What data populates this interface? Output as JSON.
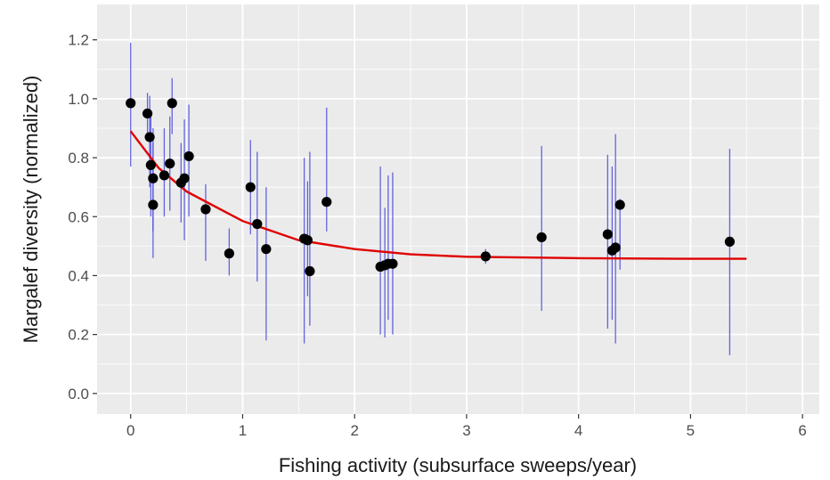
{
  "chart_data": {
    "type": "scatter",
    "xlabel": "Fishing activity (subsurface sweeps/year)",
    "ylabel": "Margalef diversity (normalized)",
    "xlim": [
      -0.3,
      6.15
    ],
    "ylim": [
      -0.07,
      1.32
    ],
    "x_ticks": [
      0,
      1,
      2,
      3,
      4,
      5,
      6
    ],
    "y_ticks": [
      0.0,
      0.2,
      0.4,
      0.6,
      0.8,
      1.0,
      1.2
    ],
    "x_tick_labels": [
      "0",
      "1",
      "2",
      "3",
      "4",
      "5",
      "6"
    ],
    "y_tick_labels": [
      "0.0",
      "0.2",
      "0.4",
      "0.6",
      "0.8",
      "1.0",
      "1.2"
    ],
    "grid": true,
    "background": "#ebebeb",
    "colors": {
      "points": "#000000",
      "error_bars": "#4b4bdc",
      "fit": "#e00000",
      "grid": "#ffffff"
    },
    "points": [
      {
        "x": 0.0,
        "y": 0.985,
        "lo": 0.77,
        "hi": 1.19
      },
      {
        "x": 0.15,
        "y": 0.95,
        "lo": 0.86,
        "hi": 1.02
      },
      {
        "x": 0.17,
        "y": 0.87,
        "lo": 0.7,
        "hi": 1.01
      },
      {
        "x": 0.18,
        "y": 0.775,
        "lo": 0.6,
        "hi": 0.95
      },
      {
        "x": 0.2,
        "y": 0.73,
        "lo": 0.55,
        "hi": 0.9
      },
      {
        "x": 0.2,
        "y": 0.64,
        "lo": 0.46,
        "hi": 0.85
      },
      {
        "x": 0.3,
        "y": 0.74,
        "lo": 0.6,
        "hi": 0.9
      },
      {
        "x": 0.35,
        "y": 0.78,
        "lo": 0.62,
        "hi": 0.94
      },
      {
        "x": 0.37,
        "y": 0.985,
        "lo": 0.88,
        "hi": 1.07
      },
      {
        "x": 0.45,
        "y": 0.715,
        "lo": 0.58,
        "hi": 0.85
      },
      {
        "x": 0.48,
        "y": 0.73,
        "lo": 0.52,
        "hi": 0.93
      },
      {
        "x": 0.52,
        "y": 0.805,
        "lo": 0.6,
        "hi": 0.98
      },
      {
        "x": 0.67,
        "y": 0.625,
        "lo": 0.45,
        "hi": 0.71
      },
      {
        "x": 0.88,
        "y": 0.475,
        "lo": 0.4,
        "hi": 0.56
      },
      {
        "x": 1.07,
        "y": 0.7,
        "lo": 0.54,
        "hi": 0.86
      },
      {
        "x": 1.13,
        "y": 0.575,
        "lo": 0.38,
        "hi": 0.82
      },
      {
        "x": 1.21,
        "y": 0.49,
        "lo": 0.18,
        "hi": 0.7
      },
      {
        "x": 1.55,
        "y": 0.525,
        "lo": 0.17,
        "hi": 0.8
      },
      {
        "x": 1.58,
        "y": 0.52,
        "lo": 0.33,
        "hi": 0.72
      },
      {
        "x": 1.6,
        "y": 0.415,
        "lo": 0.23,
        "hi": 0.82
      },
      {
        "x": 1.75,
        "y": 0.65,
        "lo": 0.55,
        "hi": 0.97
      },
      {
        "x": 2.23,
        "y": 0.43,
        "lo": 0.2,
        "hi": 0.77
      },
      {
        "x": 2.27,
        "y": 0.435,
        "lo": 0.19,
        "hi": 0.63
      },
      {
        "x": 2.3,
        "y": 0.44,
        "lo": 0.25,
        "hi": 0.74
      },
      {
        "x": 2.34,
        "y": 0.44,
        "lo": 0.2,
        "hi": 0.75
      },
      {
        "x": 3.17,
        "y": 0.465,
        "lo": 0.44,
        "hi": 0.49
      },
      {
        "x": 3.67,
        "y": 0.53,
        "lo": 0.28,
        "hi": 0.84
      },
      {
        "x": 4.26,
        "y": 0.54,
        "lo": 0.22,
        "hi": 0.81
      },
      {
        "x": 4.3,
        "y": 0.485,
        "lo": 0.25,
        "hi": 0.77
      },
      {
        "x": 4.33,
        "y": 0.495,
        "lo": 0.17,
        "hi": 0.88
      },
      {
        "x": 4.37,
        "y": 0.64,
        "lo": 0.42,
        "hi": 0.66
      },
      {
        "x": 5.35,
        "y": 0.515,
        "lo": 0.13,
        "hi": 0.83
      }
    ],
    "fit_curve": {
      "type": "exponential_decay",
      "x_range": [
        0,
        5.5
      ],
      "samples": [
        [
          0.0,
          0.89
        ],
        [
          0.25,
          0.765
        ],
        [
          0.5,
          0.685
        ],
        [
          1.0,
          0.585
        ],
        [
          1.5,
          0.52
        ],
        [
          2.0,
          0.49
        ],
        [
          2.5,
          0.472
        ],
        [
          3.0,
          0.464
        ],
        [
          4.0,
          0.459
        ],
        [
          5.0,
          0.457
        ],
        [
          5.5,
          0.457
        ]
      ]
    }
  }
}
